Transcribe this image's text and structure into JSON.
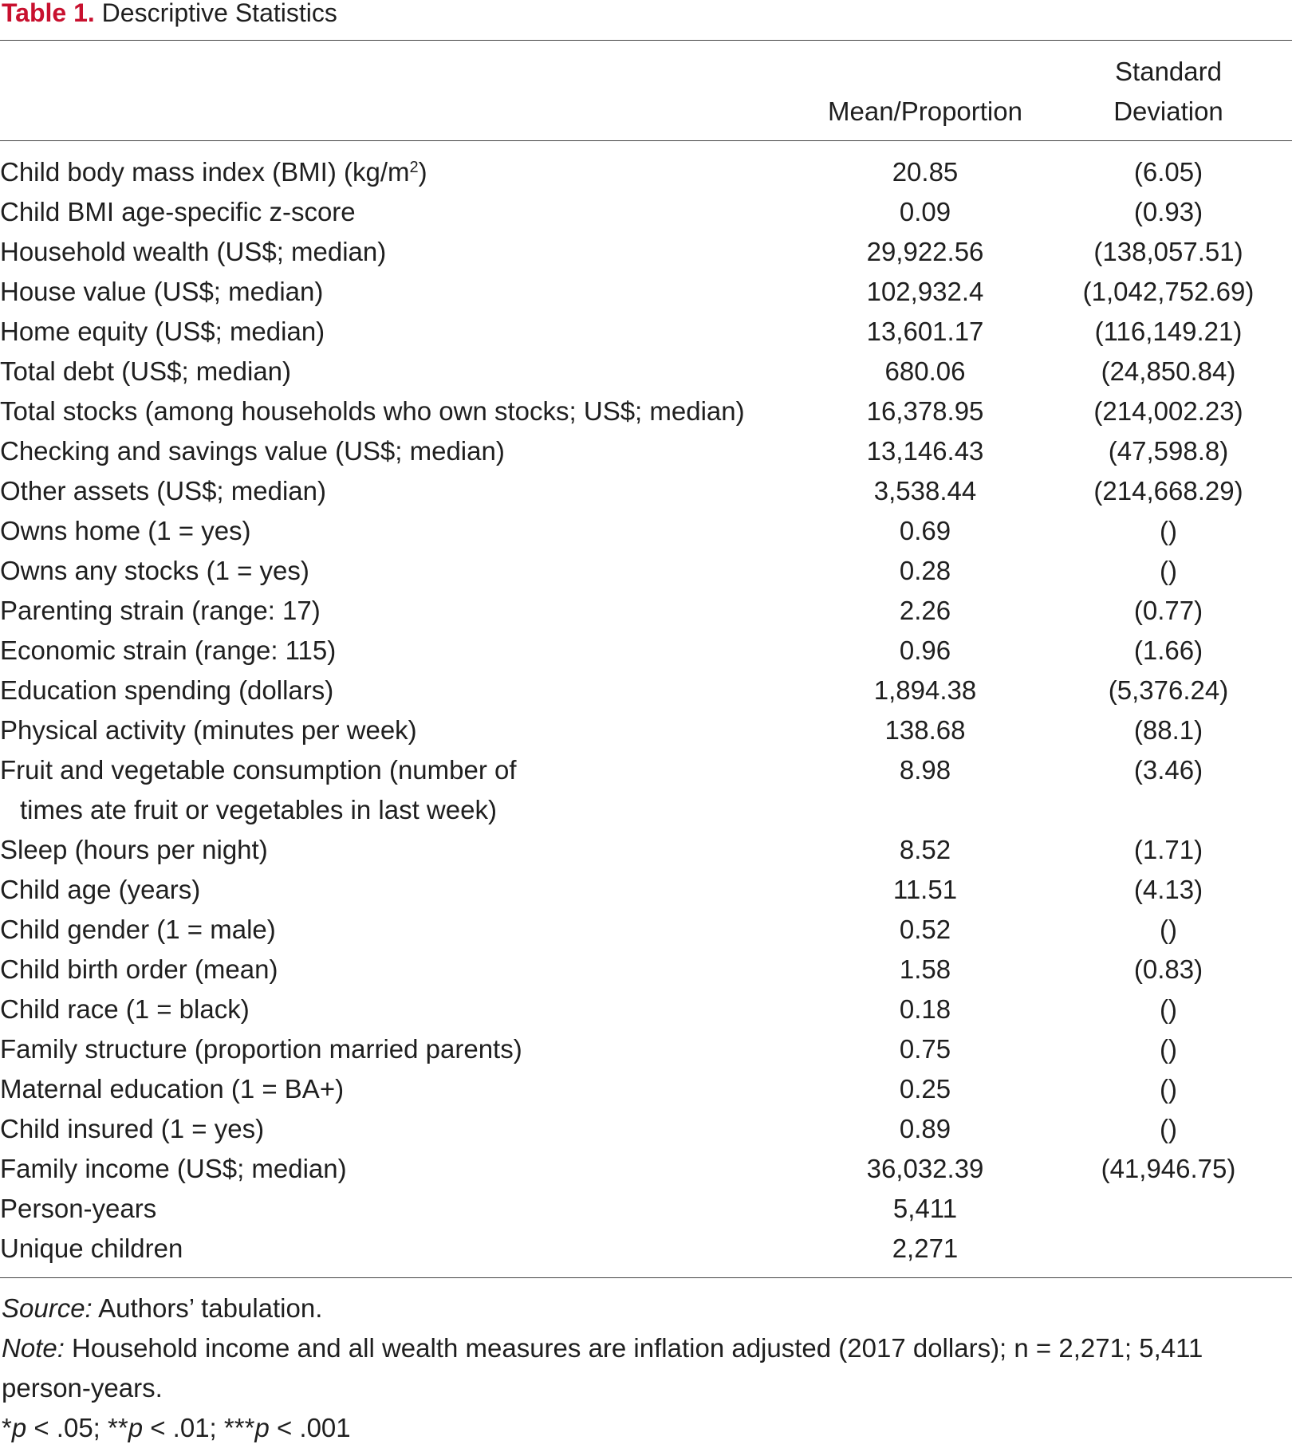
{
  "caption": {
    "label": "Table 1.",
    "title": "Descriptive Statistics"
  },
  "header": {
    "mean_label": "Mean/Proportion",
    "sd_label_line1": "Standard",
    "sd_label_line2": "Deviation"
  },
  "rows": [
    {
      "label": "Child body mass index (BMI) (kg/m",
      "label_sup": "2",
      "label_tail": ")",
      "mean": "20.85",
      "sd": "(6.05)"
    },
    {
      "label": "Child BMI age-specific z-score",
      "mean": "0.09",
      "sd": "(0.93)"
    },
    {
      "label": "Household wealth (US$; median)",
      "mean": "29,922.56",
      "sd": "(138,057.51)"
    },
    {
      "label": "House value (US$; median)",
      "mean": "102,932.4",
      "sd": "(1,042,752.69)"
    },
    {
      "label": "Home equity (US$; median)",
      "mean": "13,601.17",
      "sd": "(116,149.21)"
    },
    {
      "label": "Total debt (US$; median)",
      "mean": "680.06",
      "sd": "(24,850.84)"
    },
    {
      "label": "Total stocks (among households who own stocks; US$; median)",
      "mean": "16,378.95",
      "sd": "(214,002.23)"
    },
    {
      "label": "Checking and savings value (US$; median)",
      "mean": "13,146.43",
      "sd": "(47,598.8)"
    },
    {
      "label": "Other assets (US$; median)",
      "mean": "3,538.44",
      "sd": "(214,668.29)"
    },
    {
      "label": "Owns home (1 = yes)",
      "mean": "0.69",
      "sd": "()"
    },
    {
      "label": "Owns any stocks (1 = yes)",
      "mean": "0.28",
      "sd": "()"
    },
    {
      "label": "Parenting strain (range: 17)",
      "mean": "2.26",
      "sd": "(0.77)"
    },
    {
      "label": "Economic strain (range: 115)",
      "mean": "0.96",
      "sd": "(1.66)"
    },
    {
      "label": "Education spending (dollars)",
      "mean": "1,894.38",
      "sd": "(5,376.24)"
    },
    {
      "label": "Physical activity (minutes per week)",
      "mean": "138.68",
      "sd": "(88.1)"
    },
    {
      "label": "Fruit and vegetable consumption (number of",
      "label_line2": "times ate fruit or vegetables in last week)",
      "mean": "8.98",
      "sd": "(3.46)"
    },
    {
      "label": "Sleep (hours per night)",
      "mean": "8.52",
      "sd": "(1.71)"
    },
    {
      "label": "Child age (years)",
      "mean": "11.51",
      "sd": "(4.13)"
    },
    {
      "label": "Child gender (1 = male)",
      "mean": "0.52",
      "sd": "()"
    },
    {
      "label": "Child birth order (mean)",
      "mean": "1.58",
      "sd": "(0.83)"
    },
    {
      "label": "Child race (1 = black)",
      "mean": "0.18",
      "sd": "()"
    },
    {
      "label": "Family structure (proportion married parents)",
      "mean": "0.75",
      "sd": "()"
    },
    {
      "label": "Maternal education (1 = BA+)",
      "mean": "0.25",
      "sd": "()"
    },
    {
      "label": "Child insured (1 = yes)",
      "mean": "0.89",
      "sd": "()"
    },
    {
      "label": "Family income (US$; median)",
      "mean": "36,032.39",
      "sd": "(41,946.75)"
    },
    {
      "label": "Person-years",
      "mean": "5,411",
      "sd": ""
    },
    {
      "label": "Unique children",
      "mean": "2,271",
      "sd": ""
    }
  ],
  "notes": {
    "source_label": "Source:",
    "source_text": " Authors’ tabulation.",
    "note_label": "Note:",
    "note_text": " Household income and all wealth measures are inflation adjusted (2017 dollars); n = 2,271; 5,411 person-years.",
    "sig": [
      {
        "stars": "*",
        "p": "p",
        "rest": " < .05; "
      },
      {
        "stars": "**",
        "p": "p",
        "rest": " < .01; "
      },
      {
        "stars": "***",
        "p": "p",
        "rest": " < .001"
      }
    ]
  }
}
